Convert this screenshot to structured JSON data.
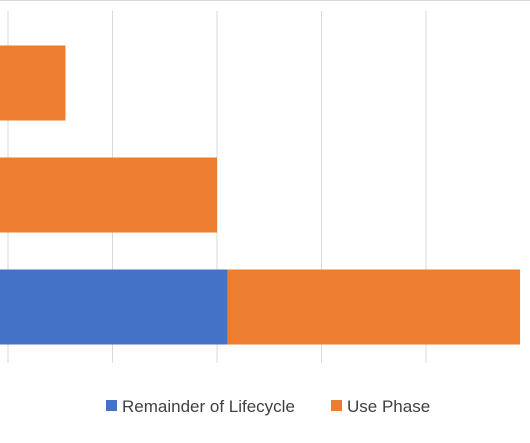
{
  "chart_data": {
    "type": "bar",
    "orientation": "horizontal",
    "stacked": true,
    "categories": [
      "",
      "",
      ""
    ],
    "series": [
      {
        "name": "Remainder of Lifecycle",
        "color": "#4472C4",
        "values": [
          0,
          0,
          2.1
        ]
      },
      {
        "name": "Use Phase",
        "color": "#ED7D31",
        "values": [
          0.55,
          2.0,
          2.8
        ]
      }
    ],
    "title": "",
    "xlabel": "",
    "ylabel": "",
    "xlim": [
      -0.1,
      5.0
    ],
    "x_gridlines": [
      0,
      1,
      2,
      3,
      4,
      5
    ],
    "grid": true,
    "legend": "bottom",
    "gridline_color": "#d9d9d9"
  }
}
